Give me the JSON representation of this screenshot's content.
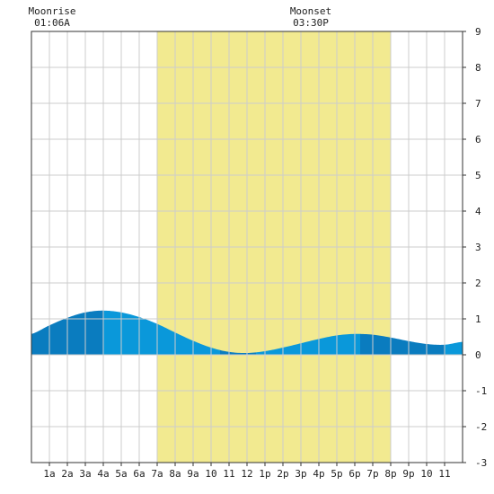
{
  "chart_data": {
    "type": "area",
    "annotations": [
      {
        "label": "Moonrise",
        "time": "01:06A",
        "hour": 1.1
      },
      {
        "label": "Moonset",
        "time": "03:30P",
        "hour": 15.5
      }
    ],
    "daylight": {
      "start_hour": 7,
      "end_hour": 20
    },
    "x_ticks": [
      {
        "hour": 1,
        "label": "1a"
      },
      {
        "hour": 2,
        "label": "2a"
      },
      {
        "hour": 3,
        "label": "3a"
      },
      {
        "hour": 4,
        "label": "4a"
      },
      {
        "hour": 5,
        "label": "5a"
      },
      {
        "hour": 6,
        "label": "6a"
      },
      {
        "hour": 7,
        "label": "7a"
      },
      {
        "hour": 8,
        "label": "8a"
      },
      {
        "hour": 9,
        "label": "9a"
      },
      {
        "hour": 10,
        "label": "10"
      },
      {
        "hour": 11,
        "label": "11"
      },
      {
        "hour": 12,
        "label": "12"
      },
      {
        "hour": 13,
        "label": "1p"
      },
      {
        "hour": 14,
        "label": "2p"
      },
      {
        "hour": 15,
        "label": "3p"
      },
      {
        "hour": 16,
        "label": "4p"
      },
      {
        "hour": 17,
        "label": "5p"
      },
      {
        "hour": 18,
        "label": "6p"
      },
      {
        "hour": 19,
        "label": "7p"
      },
      {
        "hour": 20,
        "label": "8p"
      },
      {
        "hour": 21,
        "label": "9p"
      },
      {
        "hour": 22,
        "label": "10"
      },
      {
        "hour": 23,
        "label": "11"
      }
    ],
    "y_ticks": [
      "-3",
      "-2",
      "-1",
      "0",
      "1",
      "2",
      "3",
      "4",
      "5",
      "6",
      "7",
      "8",
      "9"
    ],
    "xlim": [
      0,
      24
    ],
    "ylim": [
      -3,
      9
    ],
    "series": [
      {
        "x": [
          0,
          1,
          2,
          3,
          4,
          5,
          6,
          7,
          8,
          9,
          10,
          11,
          12,
          13,
          14,
          15,
          16,
          17,
          18,
          19,
          20,
          21,
          22,
          23,
          24
        ],
        "y": [
          0.58,
          0.82,
          1.03,
          1.18,
          1.23,
          1.18,
          1.05,
          0.86,
          0.62,
          0.39,
          0.2,
          0.08,
          0.05,
          0.1,
          0.2,
          0.32,
          0.44,
          0.54,
          0.58,
          0.56,
          0.48,
          0.38,
          0.3,
          0.28,
          0.36
        ]
      }
    ],
    "band_bounds": [
      0,
      4,
      10.5,
      12.5,
      18.3,
      23,
      24
    ],
    "grid": true,
    "colors": {
      "daylight": "#f2ea90",
      "water_dark": "#0a7cbf",
      "water_light": "#0a98da",
      "grid": "#cccccc",
      "axis": "#333333"
    }
  }
}
